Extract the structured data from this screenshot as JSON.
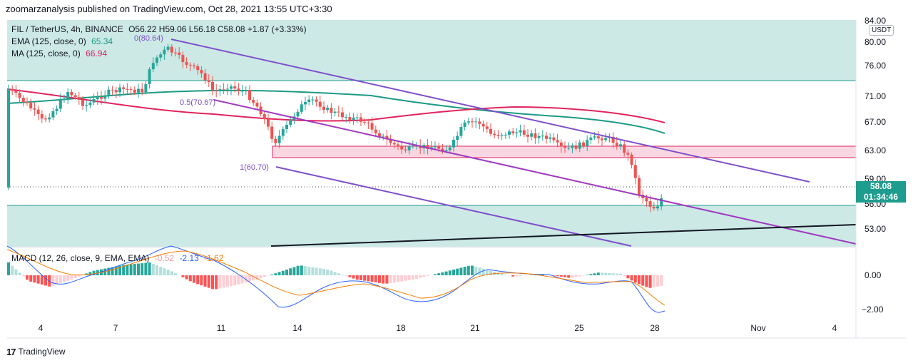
{
  "header": {
    "text": "zoomarzanalysis published on TradingView.com, Oct 28, 2021 13:55 UTC+3:30"
  },
  "legend": {
    "symbol": "FIL / TetherUS, 4h, BINANCE",
    "ohlc": "O56.22 H59.06 L56.18 C58.08 +1.87 (+3.33%)",
    "ema_label": "EMA (125, close, 0)",
    "ema_value": "65.34",
    "ma_label": "MA (125, close, 0)",
    "ma_value": "66.94",
    "macd_label": "MACD (12, 26, close, 9, EMA, EMA)",
    "macd_v1": "-0.52",
    "macd_v2": "-2.13",
    "macd_v3": "-1.62"
  },
  "currency_badge": "USDT",
  "price_axis": {
    "ticks": [
      "84.00",
      "80.00",
      "76.00",
      "71.00",
      "67.00",
      "63.00",
      "59.00",
      "56.00",
      "53.00"
    ],
    "macd_ticks": [
      "0.00",
      "−2.00"
    ]
  },
  "last_price": {
    "price": "58.08",
    "countdown": "01:34:46"
  },
  "time_axis": {
    "ticks": [
      "4",
      "7",
      "11",
      "14",
      "18",
      "21",
      "25",
      "28",
      "Nov",
      "4"
    ]
  },
  "fib_labels": {
    "top": "0(80.64)",
    "mid": "0.5(70.67)",
    "bottom": "1(60.70)"
  },
  "footer": {
    "brand": "TradingView"
  },
  "colors": {
    "up": "#26a69a",
    "down": "#ef5350",
    "zone_teal": "#cce9e6",
    "zone_pink": "#f8d7e3",
    "ema": "#1d9a85",
    "ma": "#e0245e",
    "channel": "#7e4fc9",
    "magenta": "#a03cbf",
    "macd_line": "#2962ff",
    "signal_line": "#f57c00"
  },
  "chart_data": {
    "type": "candlestick",
    "symbol": "FIL / TetherUS",
    "interval": "4h",
    "exchange": "BINANCE",
    "last": {
      "open": 56.22,
      "high": 59.06,
      "low": 56.18,
      "close": 58.08,
      "change": 1.87,
      "change_pct": 3.33
    },
    "ylim": [
      50.5,
      84.5
    ],
    "x_ticks": [
      "4",
      "7",
      "11",
      "14",
      "18",
      "21",
      "25",
      "28",
      "Nov",
      "4"
    ],
    "ema125_last": 65.34,
    "ma125_last": 66.94,
    "fib": {
      "level_0": 80.64,
      "level_0_5": 70.67,
      "level_1": 60.7
    },
    "zones": [
      {
        "name": "upper zone",
        "from": 73.2,
        "to": 84.5
      },
      {
        "name": "resistance zone",
        "from": 61.9,
        "to": 63.6
      },
      {
        "name": "lower zone",
        "from": 50.5,
        "to": 56.1
      }
    ],
    "macd": {
      "macd": -2.13,
      "signal": -1.62,
      "histogram": -0.52,
      "ylim": [
        -2.6,
        1.0
      ]
    }
  }
}
